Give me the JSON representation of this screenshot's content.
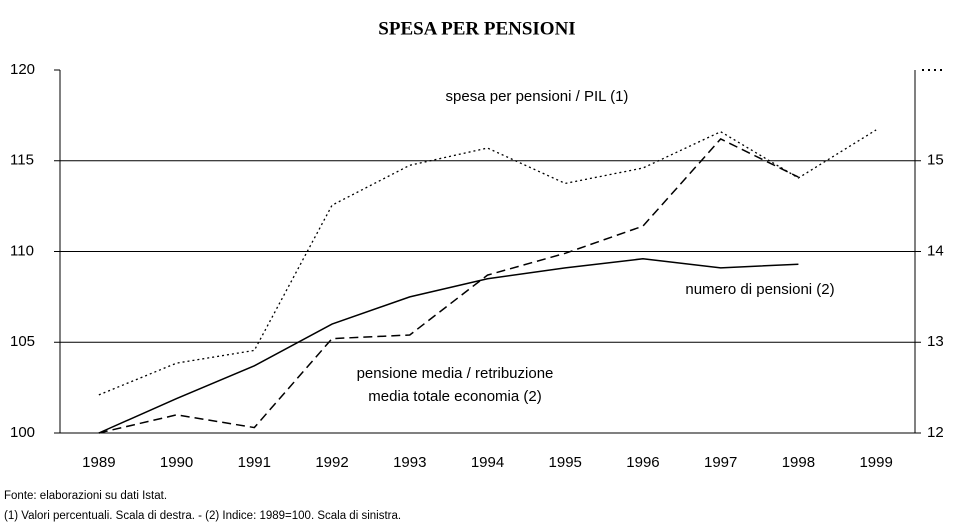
{
  "chart_data": {
    "type": "line",
    "title": "SPESA PER PENSIONI",
    "categories": [
      "1989",
      "1990",
      "1991",
      "1992",
      "1993",
      "1994",
      "1995",
      "1996",
      "1997",
      "1998",
      "1999"
    ],
    "series": [
      {
        "name": "numero di pensioni (2)",
        "color": "#000000",
        "dash": "solid",
        "values": [
          100,
          101.9,
          103.7,
          106,
          107.5,
          108.5,
          109.1,
          109.6,
          109.1,
          109.3,
          null
        ]
      },
      {
        "name": "pensione media / retribuzione media totale economia (2)",
        "color": "#000000",
        "dash": "dashed",
        "values": [
          100,
          101,
          100.3,
          105.2,
          105.4,
          108.7,
          109.9,
          111.4,
          116.2,
          114.1,
          null
        ]
      },
      {
        "name": "spesa per pensioni / PIL (1)",
        "color": "#000000",
        "dash": "dotted",
        "axis": "y2",
        "values": [
          12.42,
          12.77,
          12.91,
          14.51,
          14.95,
          15.14,
          14.75,
          14.92,
          15.32,
          14.81,
          15.34
        ]
      }
    ],
    "ylim": [
      100,
      120
    ],
    "yticks": [
      100,
      105,
      110,
      115,
      120
    ],
    "y2lim": [
      12,
      16
    ],
    "y2ticks": [
      12,
      13,
      14,
      15
    ],
    "grid": true,
    "annotations": [
      "spesa per pensioni / PIL (1)",
      "numero di pensioni (2)",
      "pensione media / retribuzione",
      "media totale economia (2)"
    ],
    "footnotes": [
      "Fonte: elaborazioni su dati Istat.",
      "(1) Valori percentuali. Scala di destra. - (2) Indice: 1989=100. Scala di sinistra."
    ]
  }
}
